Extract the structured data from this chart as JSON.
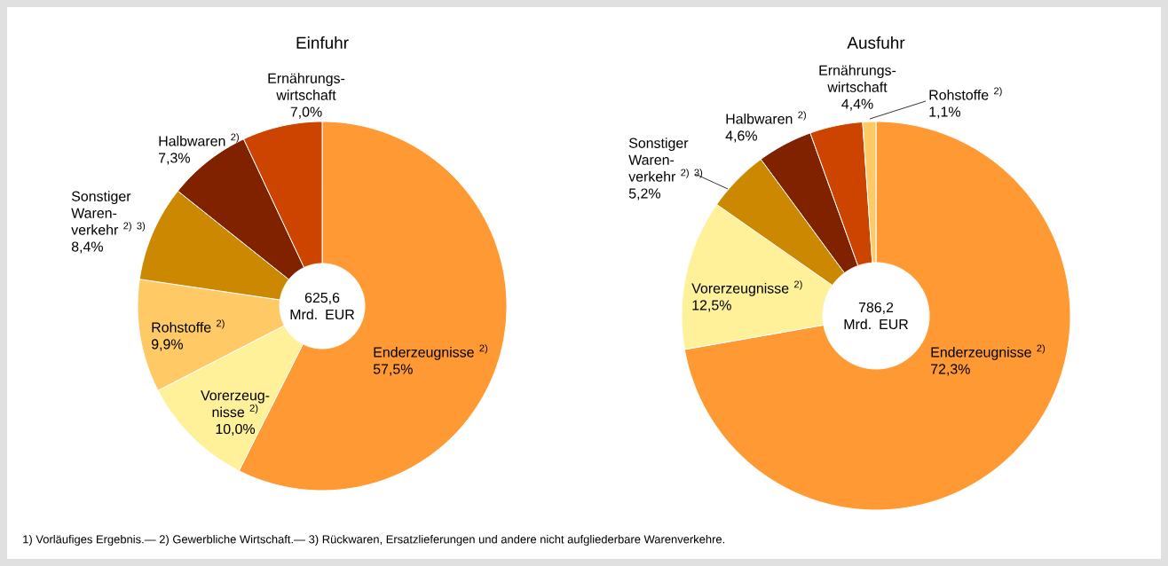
{
  "chart_data": [
    {
      "type": "donut",
      "title": "Einfuhr",
      "categories": [
        "Enderzeugnisse $^{2)}$",
        "Vorerzeug-nisse $^{2)}$",
        "Rohstoffe $^{2)}$",
        "Sonstiger Waren-verkehr $^{2) 3)}$",
        "Halbwaren $^{2)}$",
        "Ernährungs-wirtschaft"
      ],
      "values": [
        57.5,
        10.0,
        9.9,
        8.4,
        7.3,
        7.0
      ],
      "value_labels": [
        "57,5%",
        "10,0%",
        "9,9%",
        "8,4%",
        "7,3%",
        "7,0%"
      ],
      "colors": [
        "#ff9933",
        "#fff09a",
        "#ffc966",
        "#cc8800",
        "#802200",
        "#cc4400"
      ],
      "annotations": [
        "625,6 Mrd. EUR",
        "1) Vorläufiges Ergebnis.— 2) Gewerbliche Wirtschaft.— 3) Rückwaren, Ersatzlieferungen und andere nicht aufgliederbare  Warenverkehre."
      ]
    },
    {
      "type": "donut",
      "title": "Ausfuhr",
      "categories": [
        "Enderzeugnisse $^{2)}$",
        "Vorerzeugnisse $^{2)}$",
        "Sonstiger Waren-verkehr $^{2) 3)}$",
        "Halbwaren $^{2)}$",
        "Ernährungs-wirtschaft",
        "Rohstoffe $^{2)}$"
      ],
      "values": [
        72.3,
        12.5,
        5.2,
        4.6,
        4.4,
        1.1
      ],
      "value_labels": [
        "72,3%",
        "12,5%",
        "5,2%",
        "4,6%",
        "4,4%",
        "1,1%"
      ],
      "colors": [
        "#ff9933",
        "#fff09a",
        "#cc8800",
        "#802200",
        "#cc4400",
        "#ffc966"
      ],
      "annotations": [
        "786,2 Mrd. EUR"
      ]
    }
  ]
}
